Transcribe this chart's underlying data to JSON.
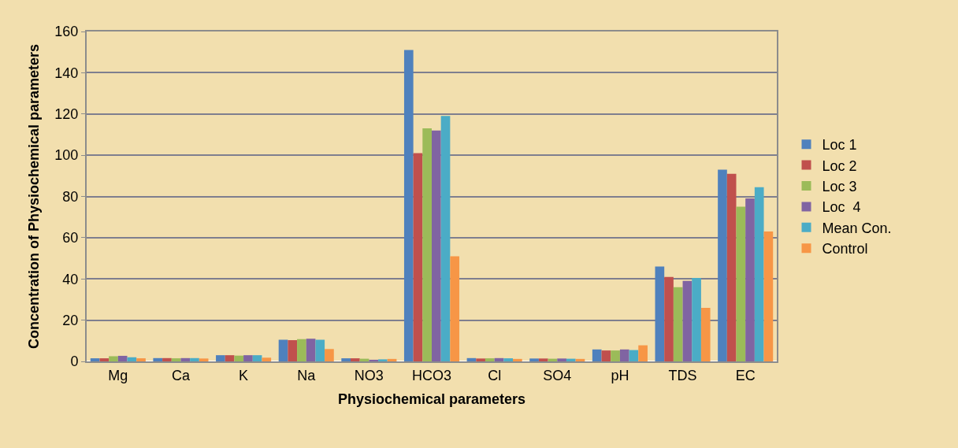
{
  "chart_data": {
    "type": "bar",
    "xlabel": "Physiochemical parameters",
    "ylabel": "Concentration of Physiochemical parameters",
    "categories": [
      "Mg",
      "Ca",
      "K",
      "Na",
      "NO3",
      "HCO3",
      "Cl",
      "SO4",
      "pH",
      "TDS",
      "EC"
    ],
    "series": [
      {
        "name": "Loc 1",
        "color": "#4f81bd",
        "values": [
          1.5,
          1.6,
          3,
          10.5,
          1.5,
          151,
          1.6,
          1.4,
          5.8,
          46,
          93
        ]
      },
      {
        "name": "Loc 2",
        "color": "#c0504d",
        "values": [
          1.5,
          1.6,
          3,
          10.3,
          1.5,
          101,
          1.4,
          1.4,
          5.3,
          41,
          91
        ]
      },
      {
        "name": "Loc 3",
        "color": "#9bbb59",
        "values": [
          2.5,
          1.5,
          2.8,
          10.8,
          1.3,
          113,
          1.5,
          1.3,
          5.3,
          36,
          75
        ]
      },
      {
        "name": "Loc  4",
        "color": "#8064a2",
        "values": [
          2.7,
          1.6,
          3,
          11,
          0.8,
          112,
          1.6,
          1.4,
          5.8,
          39,
          79
        ]
      },
      {
        "name": "Mean Con.",
        "color": "#4bacc6",
        "values": [
          2,
          1.6,
          3,
          10.5,
          1,
          119,
          1.5,
          1.3,
          5.5,
          40.5,
          84.5
        ]
      },
      {
        "name": "Control",
        "color": "#f79646",
        "values": [
          1.5,
          1.4,
          1.8,
          6,
          1.2,
          51,
          1.2,
          1.2,
          7.8,
          26,
          63
        ]
      }
    ],
    "ylim": [
      0,
      160
    ],
    "yticks": [
      0,
      20,
      40,
      60,
      80,
      100,
      120,
      140,
      160
    ],
    "grid": "y",
    "legend": "right"
  }
}
